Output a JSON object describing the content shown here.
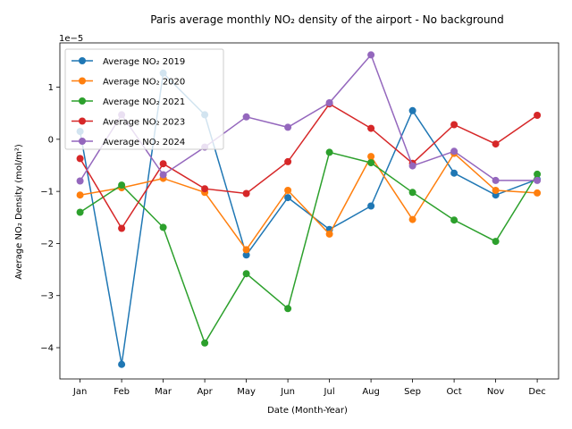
{
  "chart_data": {
    "type": "line",
    "title": "Paris average monthly NO₂ density of the airport - No background",
    "xlabel": "Date (Month-Year)",
    "ylabel": "Average NO₂ Density (mol/m²)",
    "y_offset_label": "1e−5",
    "categories": [
      "Jan",
      "Feb",
      "Mar",
      "Apr",
      "May",
      "Jun",
      "Jul",
      "Aug",
      "Sep",
      "Oct",
      "Nov",
      "Dec"
    ],
    "ylim": [
      -4.6,
      1.85
    ],
    "yticks": [
      -4,
      -3,
      -2,
      -1,
      0,
      1
    ],
    "ytick_labels": [
      "−4",
      "−3",
      "−2",
      "−1",
      "0",
      "1"
    ],
    "grid": false,
    "legend_position": "top-left",
    "series": [
      {
        "name": "Average NO₂ 2019",
        "color": "#1f77b4",
        "values": [
          0.15,
          -4.32,
          1.27,
          0.47,
          -2.22,
          -1.12,
          -1.73,
          -1.28,
          0.55,
          -0.65,
          -1.07,
          -0.77
        ]
      },
      {
        "name": "Average NO₂ 2020",
        "color": "#ff7f0e",
        "values": [
          -1.07,
          -0.93,
          -0.75,
          -1.02,
          -2.12,
          -0.98,
          -1.82,
          -0.33,
          -1.54,
          -0.27,
          -0.98,
          -1.03
        ]
      },
      {
        "name": "Average NO₂ 2021",
        "color": "#2ca02c",
        "values": [
          -1.4,
          -0.88,
          -1.69,
          -3.91,
          -2.58,
          -3.25,
          -0.25,
          -0.45,
          -1.02,
          -1.55,
          -1.96,
          -0.67
        ]
      },
      {
        "name": "Average NO₂ 2023",
        "color": "#d62728",
        "values": [
          -0.37,
          -1.71,
          -0.47,
          -0.95,
          -1.04,
          -0.43,
          0.68,
          0.21,
          -0.46,
          0.28,
          -0.09,
          0.46
        ]
      },
      {
        "name": "Average NO₂ 2024",
        "color": "#9467bd",
        "values": [
          -0.8,
          0.47,
          -0.68,
          -0.15,
          0.43,
          0.23,
          0.7,
          1.62,
          -0.51,
          -0.23,
          -0.79,
          -0.79
        ]
      }
    ]
  }
}
